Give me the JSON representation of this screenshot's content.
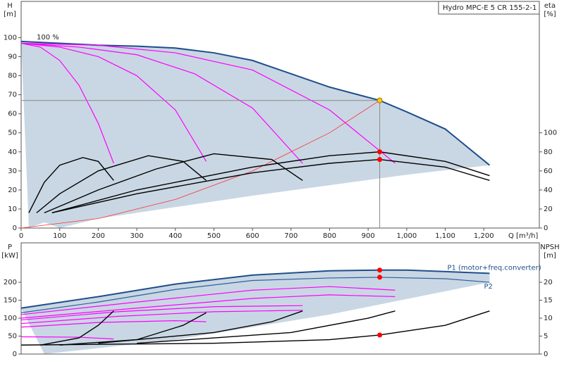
{
  "chart_data": [
    {
      "type": "line",
      "legend_text": "Hydro MPC-E 5 CR 155-2-1",
      "annotation": "100 %",
      "ylabel": "H",
      "yunit": "[m]",
      "y2label": "eta",
      "y2unit": "[%]",
      "xlabel": "Q [m³/h]",
      "xlim": [
        0,
        1344
      ],
      "ylim": [
        0,
        119
      ],
      "y2lim": [
        0,
        238
      ],
      "xticks": [
        0,
        100,
        200,
        300,
        400,
        500,
        600,
        700,
        800,
        900,
        {
          "value": 1000,
          "label": "1,000"
        },
        {
          "value": 1100,
          "label": "1,100"
        },
        {
          "value": 1200,
          "label": "1,200"
        }
      ],
      "yticks": [
        0,
        10,
        20,
        30,
        40,
        50,
        60,
        70,
        80,
        90,
        100
      ],
      "y2ticks": [
        0,
        20,
        40,
        60,
        80,
        100
      ],
      "band": {
        "color": "#c9d7e4",
        "x": [
          20,
          60,
          100,
          200,
          600,
          1000,
          1215
        ],
        "values": [
          0,
          3,
          0,
          5,
          17,
          28,
          33
        ]
      },
      "series": [
        {
          "color": "#1f4e8c",
          "x": [
            0,
            100,
            200,
            300,
            400,
            500,
            600,
            700,
            800,
            930,
            1000,
            1100,
            1215
          ],
          "values": [
            98,
            97,
            96,
            95.5,
            94.5,
            92,
            88,
            81,
            74,
            67,
            61,
            52,
            33
          ]
        },
        {
          "color": "#ff00ff",
          "x": [
            0,
            50,
            100,
            150,
            200,
            240
          ],
          "values": [
            97,
            95,
            88,
            75,
            55,
            34
          ]
        },
        {
          "color": "#ff00ff",
          "x": [
            0,
            100,
            200,
            300,
            400,
            480
          ],
          "values": [
            97,
            95,
            90,
            80,
            62,
            35
          ]
        },
        {
          "color": "#ff00ff",
          "x": [
            0,
            150,
            300,
            450,
            600,
            730
          ],
          "values": [
            97,
            95,
            91,
            81,
            63,
            34
          ]
        },
        {
          "color": "#ff00ff",
          "x": [
            0,
            200,
            400,
            600,
            800,
            970
          ],
          "values": [
            97,
            96,
            92,
            83,
            62,
            34
          ]
        },
        {
          "color": "#ff3030",
          "x": [
            0,
            200,
            400,
            600,
            800,
            930
          ],
          "values": [
            0,
            5,
            15,
            30,
            50,
            67
          ]
        },
        {
          "color": "#000000",
          "axis": "y2",
          "x": [
            20,
            60,
            100,
            160,
            200,
            240
          ],
          "values": [
            16,
            48,
            66,
            74,
            70,
            50
          ]
        },
        {
          "color": "#000000",
          "axis": "y2",
          "x": [
            40,
            100,
            200,
            330,
            420,
            480
          ],
          "values": [
            16,
            36,
            60,
            76,
            70,
            50
          ]
        },
        {
          "color": "#000000",
          "axis": "y2",
          "x": [
            60,
            200,
            350,
            500,
            650,
            730
          ],
          "values": [
            16,
            40,
            62,
            78,
            72,
            50
          ]
        },
        {
          "color": "#000000",
          "axis": "y2",
          "x": [
            80,
            300,
            600,
            800,
            930,
            1100,
            1215
          ],
          "values": [
            16,
            40,
            64,
            76,
            80,
            70,
            55
          ]
        },
        {
          "color": "#000000",
          "axis": "y2",
          "x": [
            80,
            300,
            600,
            800,
            930,
            1100,
            1215
          ],
          "values": [
            16,
            36,
            58,
            68,
            72,
            64,
            50
          ]
        }
      ],
      "markers": [
        {
          "x": 930,
          "y": 67,
          "color": "#ffcc00",
          "guides": true
        },
        {
          "x": 930,
          "y": 80,
          "axis": "y2",
          "color": "#ff0000"
        },
        {
          "x": 930,
          "y": 72,
          "axis": "y2",
          "color": "#ff0000"
        }
      ]
    },
    {
      "type": "line",
      "ylabel": "P",
      "yunit": "[kW]",
      "y2label": "NPSH",
      "y2unit": "[m]",
      "xlim": [
        0,
        1344
      ],
      "ylim": [
        0,
        310
      ],
      "y2lim": [
        0,
        31
      ],
      "yticks": [
        0,
        50,
        100,
        150,
        200
      ],
      "y2ticks": [
        0,
        5,
        10,
        15,
        20
      ],
      "band": {
        "color": "#c9d7e4",
        "x": [
          60,
          400,
          800,
          1215
        ],
        "values": [
          0,
          40,
          110,
          200
        ]
      },
      "series": [
        {
          "name": "P1 (motor+freq.converter)",
          "color": "#1f4e8c",
          "x": [
            0,
            200,
            400,
            600,
            800,
            930,
            1000,
            1215
          ],
          "values": [
            128,
            160,
            195,
            220,
            232,
            234,
            234,
            225
          ]
        },
        {
          "name": "P2",
          "color": "#2f5f9e",
          "x": [
            0,
            200,
            400,
            600,
            800,
            930,
            1100,
            1215
          ],
          "values": [
            115,
            145,
            180,
            205,
            212,
            214,
            210,
            200
          ]
        },
        {
          "color": "#ff00ff",
          "x": [
            0,
            300,
            600,
            800,
            970
          ],
          "values": [
            110,
            145,
            178,
            188,
            178
          ]
        },
        {
          "color": "#ff00ff",
          "x": [
            0,
            300,
            600,
            800,
            970
          ],
          "values": [
            100,
            128,
            155,
            165,
            160
          ]
        },
        {
          "color": "#ff00ff",
          "x": [
            0,
            250,
            500,
            730
          ],
          "values": [
            95,
            118,
            132,
            135
          ]
        },
        {
          "color": "#ff00ff",
          "x": [
            0,
            250,
            500,
            730
          ],
          "values": [
            85,
            105,
            118,
            122
          ]
        },
        {
          "color": "#ff00ff",
          "x": [
            0,
            200,
            400,
            480
          ],
          "values": [
            75,
            88,
            93,
            90
          ]
        },
        {
          "color": "#ff00ff",
          "x": [
            0,
            150,
            240
          ],
          "values": [
            48,
            47,
            42
          ]
        },
        {
          "color": "#000000",
          "axis": "y2",
          "x": [
            50,
            150,
            200,
            240
          ],
          "values": [
            2.5,
            4.5,
            8,
            12
          ]
        },
        {
          "color": "#000000",
          "axis": "y2",
          "x": [
            100,
            300,
            420,
            480
          ],
          "values": [
            2.5,
            4,
            8,
            11.5
          ]
        },
        {
          "color": "#000000",
          "axis": "y2",
          "x": [
            200,
            500,
            650,
            730
          ],
          "values": [
            3,
            6,
            9,
            12
          ]
        },
        {
          "color": "#000000",
          "axis": "y2",
          "x": [
            300,
            700,
            900,
            970
          ],
          "values": [
            3,
            6,
            10,
            12
          ]
        },
        {
          "color": "#000000",
          "axis": "y2",
          "x": [
            0,
            500,
            800,
            930,
            1100,
            1215
          ],
          "values": [
            2.5,
            3,
            4,
            5.3,
            8,
            12
          ]
        }
      ],
      "markers": [
        {
          "x": 930,
          "y": 234,
          "color": "#ff0000"
        },
        {
          "x": 930,
          "y": 214,
          "color": "#ff0000"
        },
        {
          "x": 930,
          "y": 5.3,
          "axis": "y2",
          "color": "#ff0000"
        }
      ]
    }
  ]
}
